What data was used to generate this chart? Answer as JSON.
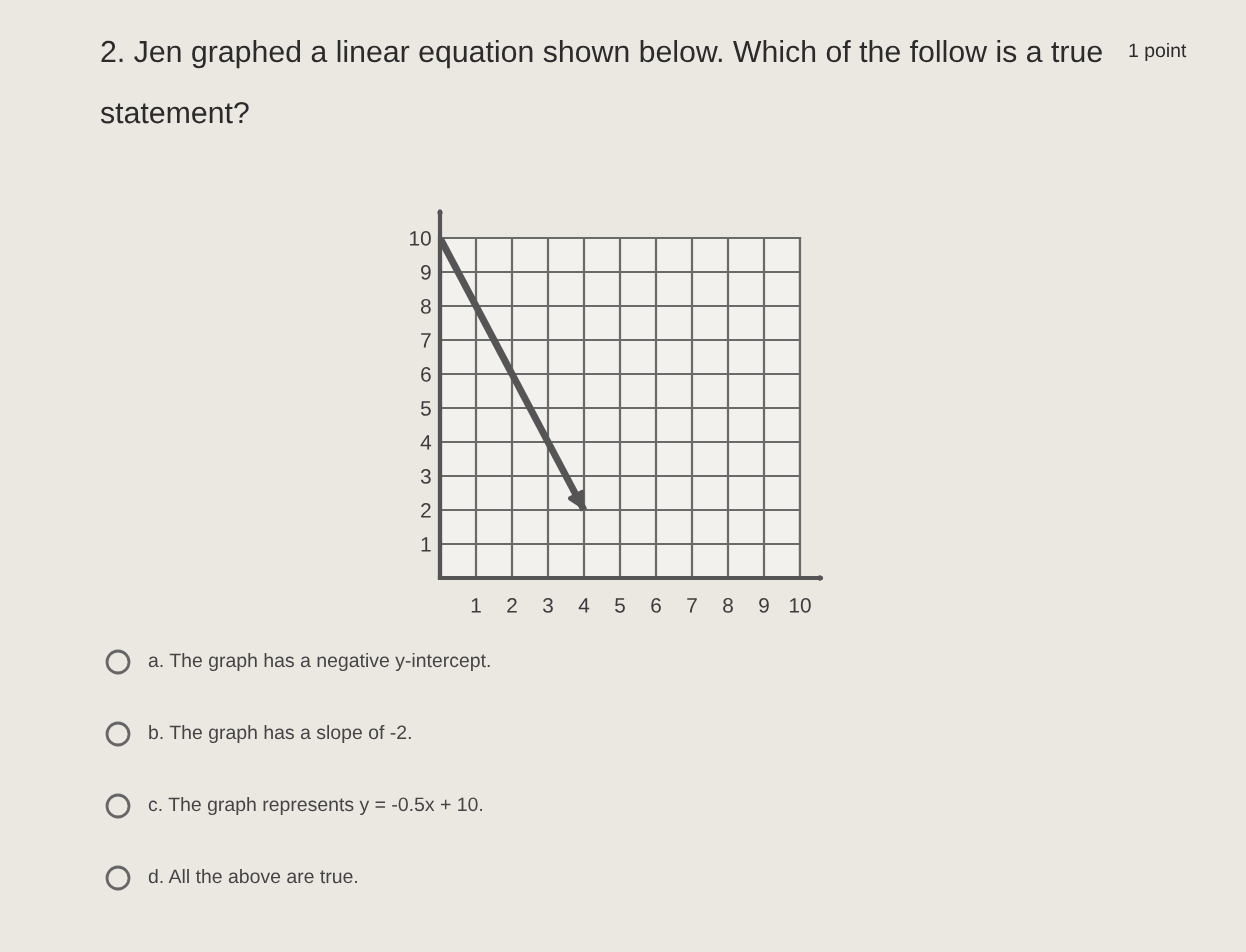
{
  "chart_data": {
    "type": "line",
    "title": "2. Jen graphed a linear equation shown below. Which of the follow is a true statement?",
    "annotations": [
      "1 point",
      "a. The graph has a negative y-intercept.",
      "b. The graph has a slope of -2.",
      "c. The graph represents y = -0.5x + 10.",
      "d. All the above are true."
    ],
    "x": [
      0,
      4
    ],
    "series": [
      {
        "color": "#555555",
        "values": [
          10,
          2
        ]
      }
    ],
    "xlim": [
      0,
      10
    ],
    "ylim": [
      0,
      10
    ],
    "xticks": [
      1,
      2,
      3,
      4,
      5,
      6,
      7,
      8,
      9,
      10
    ],
    "yticks": [
      1,
      2,
      3,
      4,
      5,
      6,
      7,
      8,
      9,
      10
    ],
    "grid": true,
    "marker": "none",
    "line_style": "solid"
  }
}
